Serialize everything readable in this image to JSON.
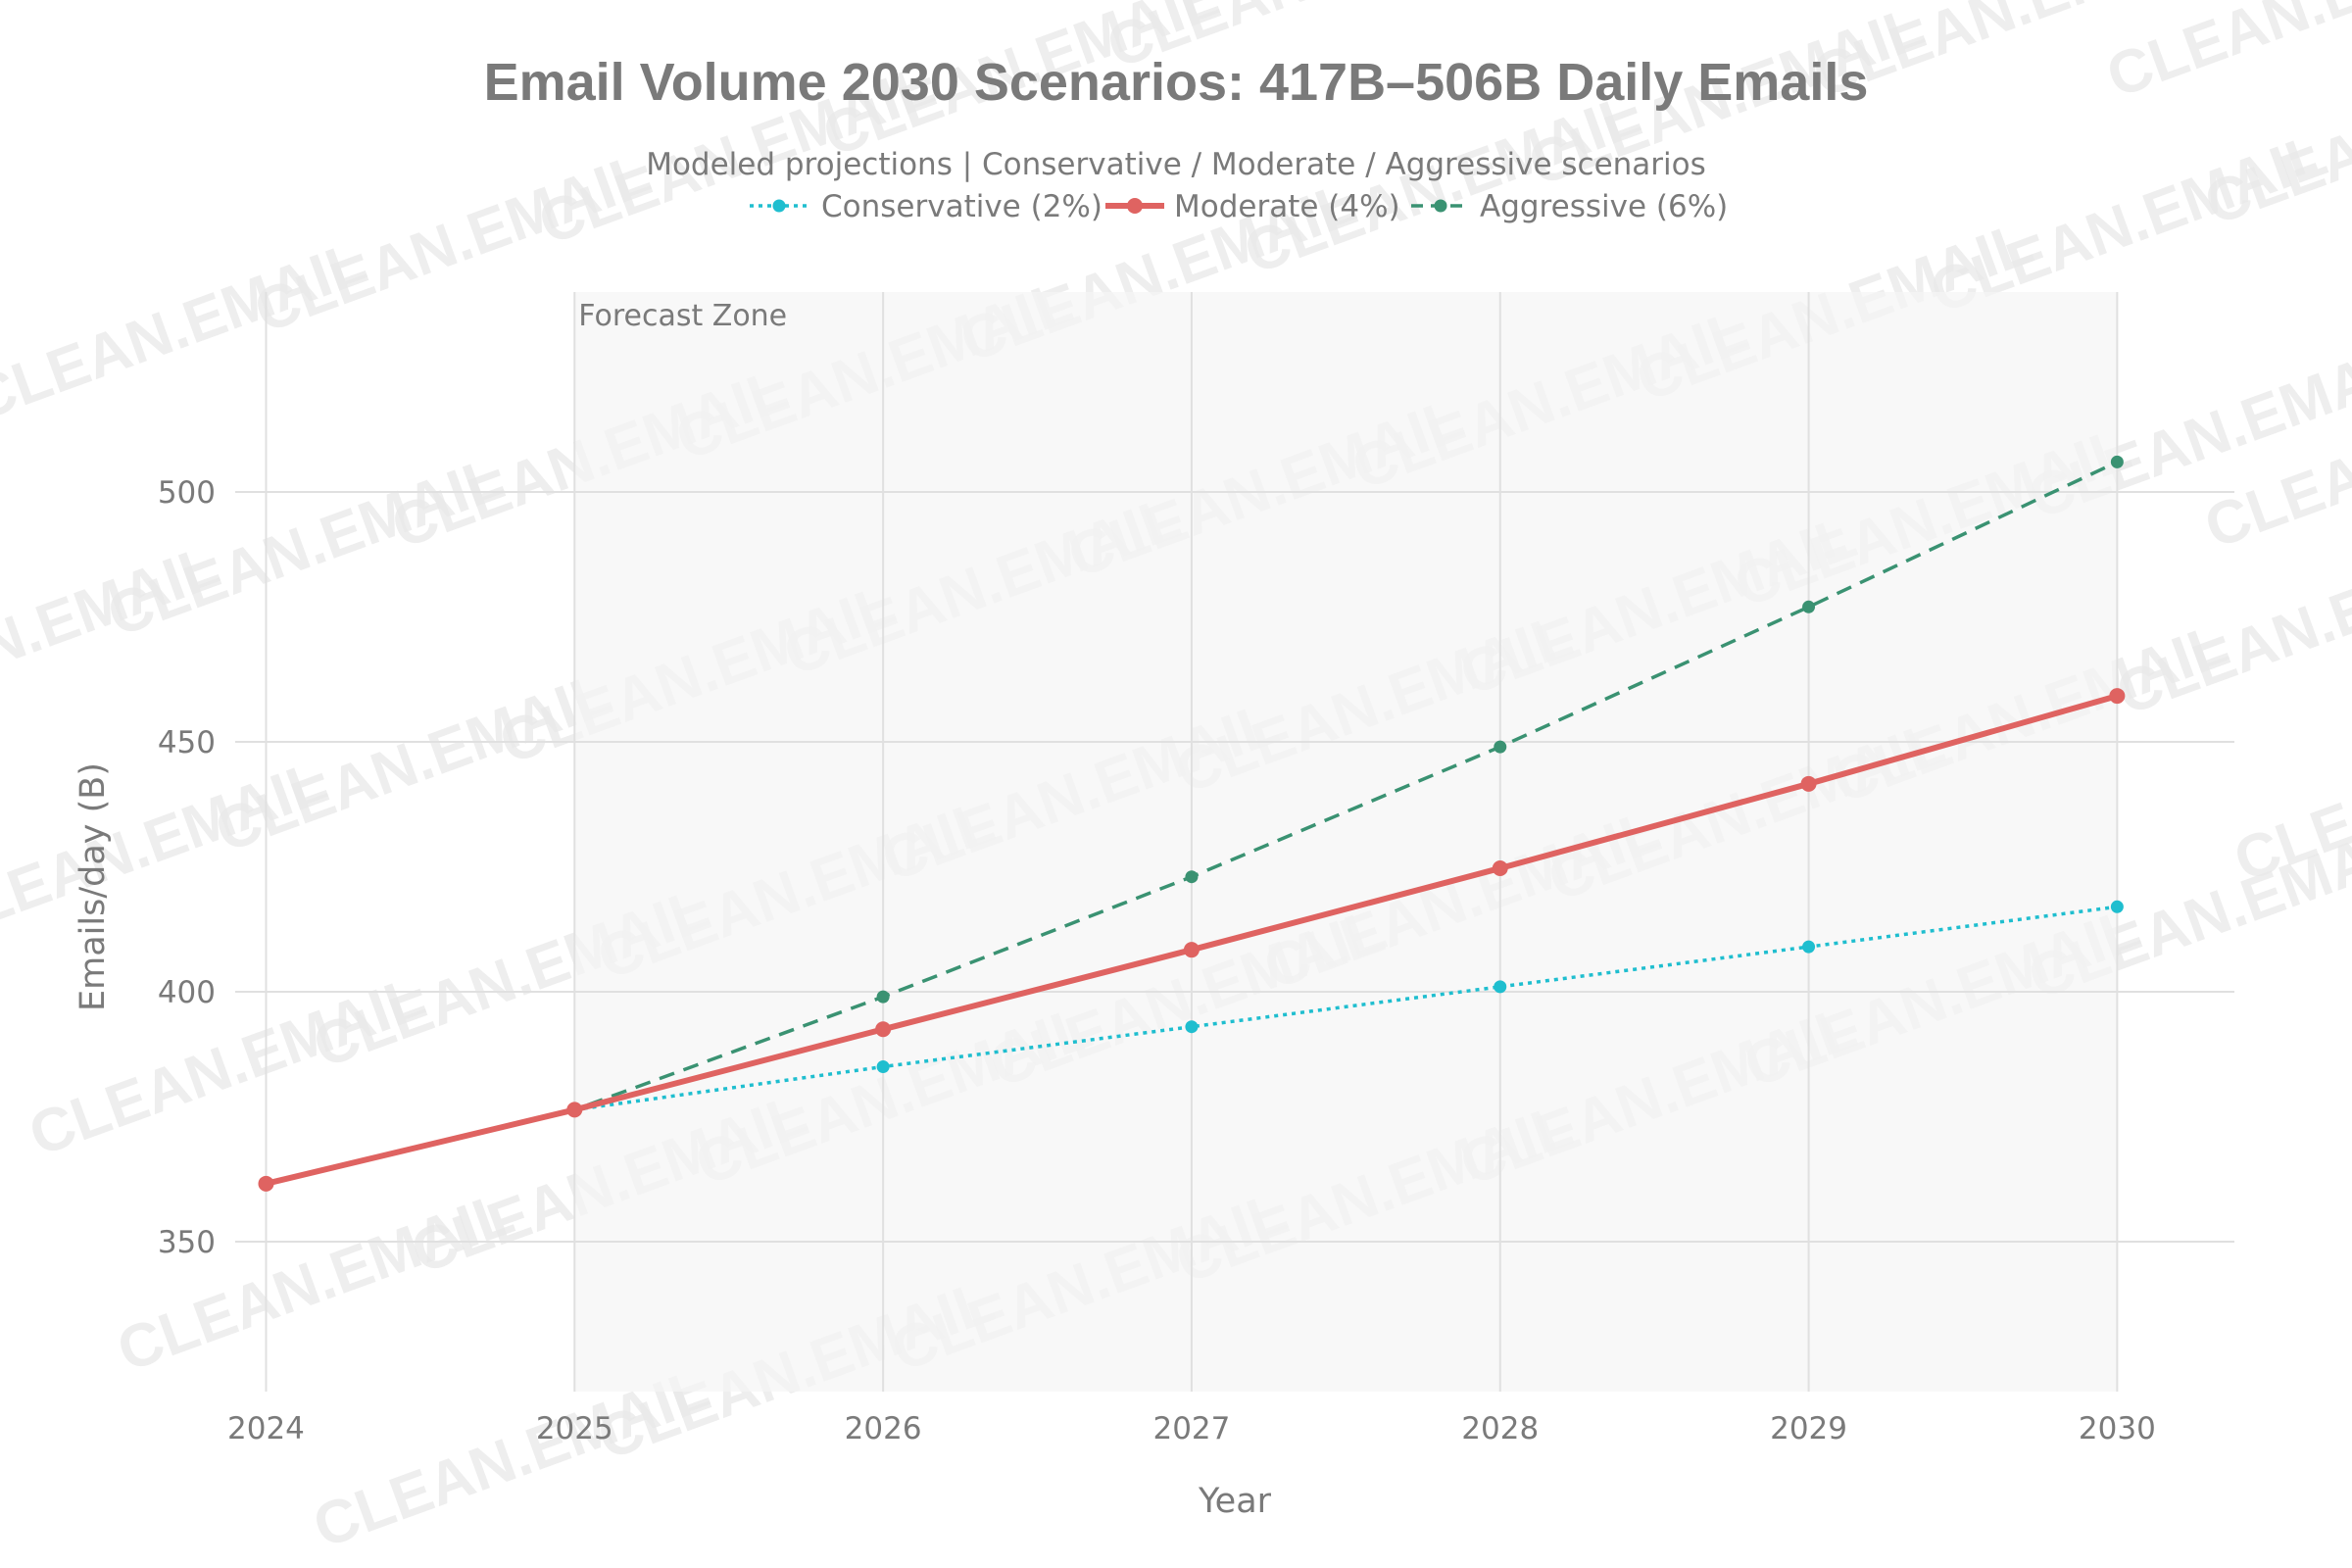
{
  "watermark": "CLEAN.EMAIL",
  "chart_data": {
    "type": "line",
    "title": "Email Volume 2030 Scenarios: 417B–506B Daily Emails",
    "subtitle": "Modeled projections | Conservative / Moderate / Aggressive scenarios",
    "xlabel": "Year",
    "ylabel": "Emails/day (B)",
    "x": [
      2024,
      2025,
      2026,
      2027,
      2028,
      2029,
      2030
    ],
    "xlim": [
      2023.9,
      2030.38
    ],
    "ylim": [
      320,
      540
    ],
    "yticks": [
      350,
      400,
      450,
      500
    ],
    "grid": true,
    "legend_position": "top-center",
    "annotation": {
      "text": "Forecast Zone",
      "x_start": 2025,
      "x_end": 2030
    },
    "series": [
      {
        "name": "Conservative (2%)",
        "values": [
          361.6,
          376.4,
          385,
          393,
          401,
          409,
          417
        ],
        "color": "#1fbecf",
        "line_style": "dotted",
        "line_width": 3.5,
        "marker_radius": 6.5
      },
      {
        "name": "Moderate (4%)",
        "values": [
          361.6,
          376.4,
          392.5,
          408.4,
          424.7,
          441.6,
          459.2
        ],
        "color": "#df6361",
        "line_style": "solid",
        "line_width": 6,
        "marker_radius": 8
      },
      {
        "name": "Aggressive (6%)",
        "values": [
          361.6,
          376.4,
          399,
          423,
          449,
          477,
          506
        ],
        "color": "#3a9272",
        "line_style": "dashed",
        "line_width": 3.5,
        "marker_radius": 6.5
      }
    ]
  }
}
